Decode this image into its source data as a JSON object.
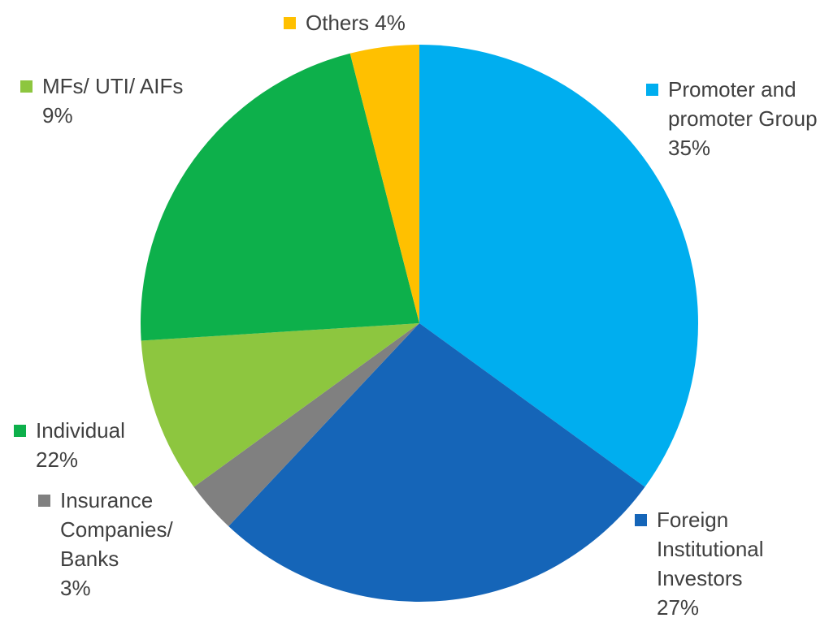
{
  "chart_data": {
    "type": "pie",
    "categories": [
      "Promoter and promoter Group",
      "Foreign Institutional Investors",
      "Insurance Companies/ Banks",
      "MFs/ UTI/ AIFs",
      "Individual",
      "Others"
    ],
    "values": [
      35,
      27,
      3,
      9,
      22,
      4
    ],
    "value_labels": [
      "35%",
      "27%",
      "3%",
      "9%",
      "22%",
      "4%"
    ],
    "colors": [
      "#00aeef",
      "#1565b8",
      "#808080",
      "#8dc63f",
      "#0db04b",
      "#ffc000"
    ]
  }
}
